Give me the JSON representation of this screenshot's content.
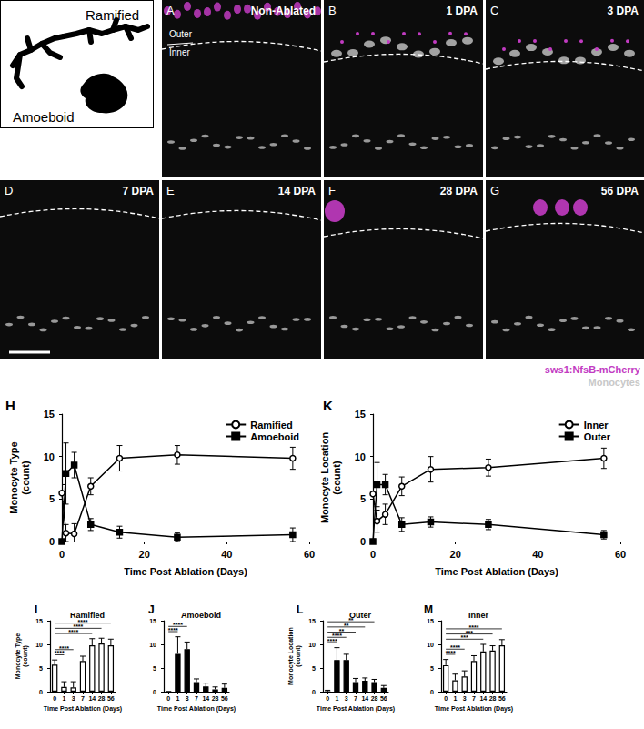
{
  "figure": {
    "schematic": {
      "labels": [
        "Ramified",
        "Amoeboid"
      ]
    },
    "images": [
      {
        "panel": "A",
        "label": "Non-Ablated"
      },
      {
        "panel": "B",
        "label": "1 DPA"
      },
      {
        "panel": "C",
        "label": "3 DPA"
      },
      {
        "panel": "D",
        "label": "7 DPA"
      },
      {
        "panel": "E",
        "label": "14 DPA"
      },
      {
        "panel": "F",
        "label": "28 DPA"
      },
      {
        "panel": "G",
        "label": "56 DPA"
      }
    ],
    "layers": [
      "Outer",
      "Inner"
    ],
    "image_legend": [
      {
        "name": "sws1:NfsB-mCherry",
        "color": "#c23bc2"
      },
      {
        "name": "Monocytes",
        "color": "#c8c8c8"
      }
    ]
  },
  "chart_data": [
    {
      "panel": "H",
      "type": "line",
      "xlabel": "Time Post Ablation (Days)",
      "ylabel": "Monocyte Type\n(count)",
      "x": [
        0,
        1,
        3,
        7,
        14,
        28,
        56
      ],
      "series": [
        {
          "name": "Ramified",
          "color": "#000000",
          "marker": "circle-open",
          "values": [
            5.7,
            1,
            0.9,
            6.5,
            9.8,
            10.2,
            9.8
          ],
          "errors": [
            1,
            1,
            1.2,
            1,
            1.5,
            1.1,
            1.3
          ]
        },
        {
          "name": "Amoeboid",
          "color": "#000000",
          "marker": "square",
          "values": [
            0,
            8,
            9,
            2,
            1.1,
            0.5,
            0.8
          ],
          "errors": [
            0,
            3.6,
            1.5,
            0.7,
            0.7,
            0.5,
            0.8
          ]
        }
      ],
      "xlim": [
        0,
        60
      ],
      "xticks": [
        0,
        20,
        40,
        60
      ],
      "ylim": [
        0,
        15
      ],
      "yticks": [
        0,
        5,
        10,
        15
      ],
      "legend": "upper right",
      "grid": false
    },
    {
      "panel": "K",
      "type": "line",
      "xlabel": "Time Post Ablation (Days)",
      "ylabel": "Monocyte Location\n(count)",
      "x": [
        0,
        1,
        3,
        7,
        14,
        28,
        56
      ],
      "series": [
        {
          "name": "Inner",
          "color": "#000000",
          "marker": "circle-open",
          "values": [
            5.6,
            2.4,
            3.2,
            6.5,
            8.5,
            8.7,
            9.8
          ],
          "errors": [
            1.2,
            1.3,
            1.2,
            1.1,
            1.5,
            1,
            1.2
          ]
        },
        {
          "name": "Outer",
          "color": "#000000",
          "marker": "square",
          "values": [
            0,
            6.7,
            6.7,
            2,
            2.3,
            2,
            0.8
          ],
          "errors": [
            0.3,
            2.6,
            1.2,
            0.8,
            0.6,
            0.6,
            0.5
          ]
        }
      ],
      "xlim": [
        0,
        60
      ],
      "xticks": [
        0,
        20,
        40,
        60
      ],
      "ylim": [
        0,
        15
      ],
      "yticks": [
        0,
        5,
        10,
        15
      ],
      "legend": "upper right",
      "grid": false
    },
    {
      "panel": "I",
      "type": "bar",
      "title": "Ramified",
      "xlabel": "Time Post Ablation (Days)",
      "ylabel": "Monocyte Type\n(count)",
      "categories": [
        "0",
        "1",
        "3",
        "7",
        "14",
        "28",
        "56"
      ],
      "values": [
        5.7,
        1,
        0.9,
        6.5,
        9.8,
        10.2,
        9.8
      ],
      "errors": [
        1,
        1.1,
        1.2,
        1,
        1.4,
        1.1,
        1.3
      ],
      "color": "#ffffff",
      "ylim": [
        0,
        15
      ],
      "yticks": [
        0,
        5,
        10,
        15
      ],
      "grid": false,
      "significance": [
        {
          "from": "0",
          "to": "1",
          "label": "****"
        },
        {
          "from": "0",
          "to": "3",
          "label": "****"
        },
        {
          "from": "0",
          "to": "14",
          "label": "****"
        },
        {
          "from": "0",
          "to": "28",
          "label": "****"
        },
        {
          "from": "0",
          "to": "56",
          "label": "****"
        }
      ]
    },
    {
      "panel": "J",
      "type": "bar",
      "title": "Amoeboid",
      "xlabel": "Time Post Ablation (Days)",
      "categories": [
        "0",
        "1",
        "3",
        "7",
        "14",
        "28",
        "56"
      ],
      "values": [
        0,
        8,
        9,
        2,
        1.1,
        0.5,
        0.8
      ],
      "errors": [
        0,
        3.6,
        1.5,
        0.7,
        0.7,
        0.5,
        0.8
      ],
      "color": "#000000",
      "ylim": [
        0,
        15
      ],
      "yticks": [
        0,
        5,
        10,
        15
      ],
      "grid": false,
      "significance": [
        {
          "from": "0",
          "to": "1",
          "label": "****"
        },
        {
          "from": "0",
          "to": "3",
          "label": "****"
        }
      ]
    },
    {
      "panel": "L",
      "type": "bar",
      "title": "Outer",
      "xlabel": "Time Post Ablation (Days)",
      "ylabel": "Monocyte Location\n(count)",
      "categories": [
        "0",
        "1",
        "3",
        "7",
        "14",
        "28",
        "56"
      ],
      "values": [
        0,
        6.7,
        6.7,
        2,
        2.3,
        2,
        0.8
      ],
      "errors": [
        0.3,
        2.6,
        1.2,
        0.8,
        0.6,
        0.6,
        0.5
      ],
      "color": "#000000",
      "ylim": [
        0,
        15
      ],
      "yticks": [
        0,
        5,
        10,
        15
      ],
      "grid": false,
      "significance": [
        {
          "from": "0",
          "to": "1",
          "label": "****"
        },
        {
          "from": "0",
          "to": "3",
          "label": "****"
        },
        {
          "from": "0",
          "to": "7",
          "label": "**"
        },
        {
          "from": "0",
          "to": "14",
          "label": "**"
        },
        {
          "from": "0",
          "to": "28",
          "label": "**"
        }
      ]
    },
    {
      "panel": "M",
      "type": "bar",
      "title": "Inner",
      "xlabel": "Time Post Ablation (Days)",
      "categories": [
        "0",
        "1",
        "3",
        "7",
        "14",
        "28",
        "56"
      ],
      "values": [
        5.6,
        2.4,
        3.2,
        6.5,
        8.5,
        8.7,
        9.8
      ],
      "errors": [
        1.2,
        1.3,
        1.2,
        1.1,
        1.5,
        1,
        1.2
      ],
      "color": "#ffffff",
      "ylim": [
        0,
        15
      ],
      "yticks": [
        0,
        5,
        10,
        15
      ],
      "grid": false,
      "significance": [
        {
          "from": "0",
          "to": "1",
          "label": "****"
        },
        {
          "from": "0",
          "to": "3",
          "label": "****"
        },
        {
          "from": "0",
          "to": "14",
          "label": "***"
        },
        {
          "from": "0",
          "to": "28",
          "label": "***"
        },
        {
          "from": "0",
          "to": "56",
          "label": "****"
        }
      ]
    }
  ]
}
